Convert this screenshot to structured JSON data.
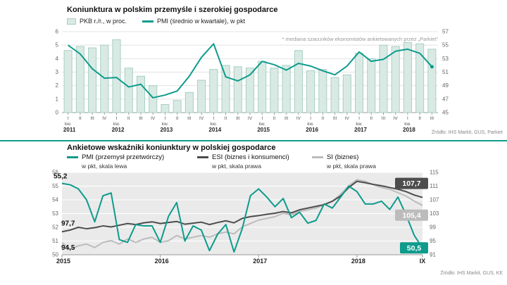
{
  "colors": {
    "teal": "#0e9b8c",
    "bar_fill": "#d9eae4",
    "bar_stroke": "#a7cfc3",
    "dark_gray": "#4d4d4d",
    "light_gray": "#bcbcbc",
    "plot_bg": "#eaeaea",
    "axis_text": "#666666"
  },
  "chart_data": [
    {
      "type": "bar+line",
      "title": "Koniunktura w polskim przemyśle i szerokiej gospodarce",
      "note": "* mediana szacunków ekonomistów ankietowanych przez „Parkiet”",
      "source": "Źródło: IHS Markit, GUS, Parkiet",
      "legend": [
        "PKB r./r., w proc.",
        "PMI (średnio w kwartale), w pkt"
      ],
      "start_year": 2011,
      "quarter_labels": [
        "I",
        "II",
        "III",
        "IV"
      ],
      "quarter_suffix": "kw.",
      "left_axis": {
        "ylim": [
          0,
          6
        ],
        "ticks": [
          0,
          1,
          2,
          3,
          4,
          5,
          6
        ]
      },
      "right_axis": {
        "ylim": [
          45,
          57
        ],
        "ticks": [
          45,
          47,
          49,
          51,
          53,
          55,
          57
        ]
      },
      "series": [
        {
          "name": "PKB r./r., w proc.",
          "type": "bar",
          "axis": "left",
          "values": [
            4.6,
            4.9,
            4.8,
            5.0,
            5.4,
            3.3,
            2.7,
            2.0,
            0.6,
            0.9,
            1.5,
            2.4,
            3.2,
            3.5,
            3.4,
            3.3,
            3.8,
            3.3,
            3.5,
            4.6,
            3.1,
            3.2,
            2.6,
            2.8,
            4.4,
            4.0,
            5.0,
            4.9,
            5.2,
            5.1,
            4.7
          ]
        },
        {
          "name": "PMI (średnio w kwartale), w pkt",
          "type": "line",
          "axis": "right",
          "values": [
            55.0,
            53.7,
            51.5,
            50.1,
            50.2,
            48.8,
            49.2,
            47.2,
            47.6,
            48.2,
            50.4,
            53.2,
            55.2,
            50.3,
            49.7,
            50.6,
            52.6,
            52.1,
            51.3,
            52.3,
            51.9,
            51.2,
            50.6,
            51.9,
            54.0,
            52.6,
            52.9,
            54.1,
            54.4,
            53.8,
            51.8
          ]
        }
      ]
    },
    {
      "type": "line",
      "title": "Ankietowe wskaźniki koniunktury w polskiej gospodarce",
      "source": "Źródło: IHS Markit, GUS, KE",
      "x_year_labels": [
        "2015",
        "2016",
        "2017",
        "2018"
      ],
      "x_end_label": "IX",
      "left_axis": {
        "ylim": [
          50,
          56
        ],
        "ticks": [
          50,
          51,
          52,
          53,
          54,
          55,
          56
        ]
      },
      "right_axis": {
        "ylim": [
          91,
          115
        ],
        "ticks": [
          91,
          95,
          99,
          103,
          107,
          111,
          115
        ]
      },
      "series": [
        {
          "name": "PMI (przemysł przetwórczy)",
          "sub": "w pkt, skala lewa",
          "axis": "left",
          "color_key": "teal",
          "start_label": "55,2",
          "end_label": "50,5",
          "values": [
            55.2,
            55.1,
            54.8,
            54.0,
            52.4,
            54.3,
            54.5,
            51.1,
            50.9,
            52.2,
            52.1,
            52.1,
            50.9,
            52.8,
            53.8,
            51.0,
            52.1,
            51.8,
            50.3,
            51.5,
            52.2,
            50.2,
            51.9,
            54.3,
            54.8,
            54.2,
            53.5,
            54.1,
            52.7,
            53.1,
            52.3,
            52.5,
            53.7,
            53.4,
            54.2,
            55.0,
            54.6,
            53.7,
            53.7,
            53.9,
            53.3,
            54.2,
            52.9,
            51.4,
            50.5
          ]
        },
        {
          "name": "ESI (biznes i konsumenci)",
          "sub": "w pkt, skala prawa",
          "axis": "right",
          "color_key": "dark_gray",
          "start_label": "97,7",
          "end_label": "107,7",
          "values": [
            97.7,
            98.2,
            99.0,
            98.6,
            98.9,
            99.4,
            99.1,
            99.6,
            100.1,
            99.8,
            100.3,
            100.6,
            100.1,
            100.4,
            100.7,
            99.9,
            100.2,
            100.5,
            99.8,
            100.4,
            100.9,
            100.3,
            101.6,
            102.1,
            102.4,
            102.8,
            103.1,
            103.6,
            103.2,
            104.1,
            104.6,
            105.1,
            105.6,
            106.6,
            108.1,
            110.6,
            112.4,
            112.0,
            111.5,
            111.1,
            110.6,
            110.1,
            109.4,
            108.4,
            107.7
          ]
        },
        {
          "name": "SI (biznes)",
          "sub": "w pkt, skala prawa",
          "axis": "right",
          "color_key": "light_gray",
          "start_label": "94,5",
          "end_label": "105,4",
          "values": [
            94.5,
            92.6,
            93.6,
            94.1,
            93.1,
            94.6,
            95.1,
            94.1,
            95.6,
            94.6,
            95.6,
            96.1,
            94.6,
            95.1,
            96.6,
            95.6,
            96.1,
            96.6,
            96.1,
            97.1,
            97.6,
            97.1,
            99.1,
            100.1,
            101.1,
            101.6,
            102.1,
            103.1,
            102.6,
            103.6,
            104.1,
            104.6,
            105.6,
            106.6,
            108.6,
            111.1,
            112.9,
            112.4,
            111.4,
            110.6,
            110.1,
            109.1,
            108.1,
            106.6,
            105.4
          ]
        }
      ]
    }
  ]
}
